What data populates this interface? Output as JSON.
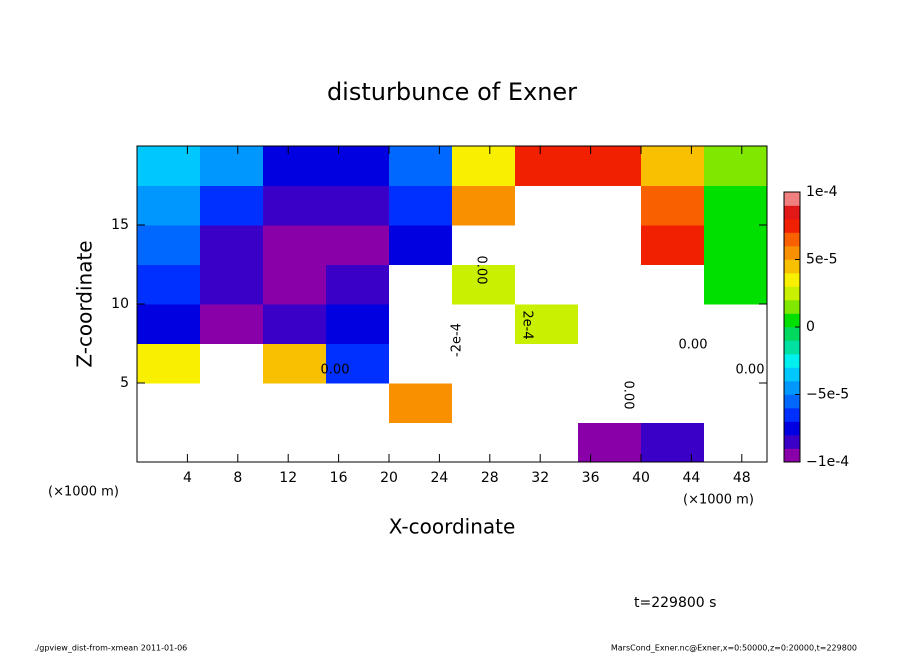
{
  "chart_data": {
    "type": "heatmap",
    "title": "disturbunce of Exner",
    "xlabel": "X-coordinate",
    "ylabel": "Z-coordinate",
    "x_unit_label": "(×1000 m)",
    "time_label": "t=229800 s",
    "footer_left": "./gpview_dist-from-xmean  2011-01-06",
    "footer_right": "MarsCond_Exner.nc@Exner,x=0:50000,z=0:20000,t=229800",
    "annotations": [
      "0.00",
      "0.00",
      "0.00",
      "0.00",
      "-2e-4",
      "2e-4",
      "0.00"
    ],
    "xlim": [
      0,
      50
    ],
    "ylim": [
      0,
      20
    ],
    "xticks": [
      4,
      8,
      12,
      16,
      20,
      24,
      28,
      32,
      36,
      40,
      44,
      48
    ],
    "yticks": [
      5,
      10,
      15
    ],
    "x": [
      2.5,
      7.5,
      12.5,
      17.5,
      22.5,
      27.5,
      32.5,
      37.5,
      42.5,
      47.5
    ],
    "z": [
      1.25,
      3.75,
      6.25,
      8.75,
      11.25,
      13.75,
      16.25,
      18.75
    ],
    "values": [
      [
        -0.00015,
        0.00015,
        0.00012,
        0.00013,
        -0.00012,
        -0.00016,
        -0.00016,
        -9e-05,
        -8e-05,
        0.00011
      ],
      [
        0.00012,
        0.00014,
        0.00013,
        0.00014,
        6e-05,
        -0.00012,
        -0.00015,
        -0.00015,
        0.00012,
        0.00012
      ],
      [
        4e-05,
        0.00011,
        5e-05,
        -6e-05,
        0.00012,
        -0.00013,
        0.00012,
        -0.00014,
        0.00012,
        0.00011
      ],
      [
        -7e-05,
        -9e-05,
        -8e-05,
        -7e-05,
        0.00013,
        0.00011,
        3e-05,
        0.00012,
        0.00011,
        0.00011
      ],
      [
        -6e-05,
        -8e-05,
        -9e-05,
        -8e-05,
        0.00012,
        3e-05,
        0.00012,
        0.00012,
        0.00011,
        1e-05
      ],
      [
        -5e-05,
        -8e-05,
        -9e-05,
        -9e-05,
        -7e-05,
        0.00011,
        0.00012,
        0.00011,
        8e-05,
        1e-05
      ],
      [
        -4e-05,
        -6e-05,
        -8e-05,
        -8e-05,
        -6e-05,
        6e-05,
        0.00011,
        0.00011,
        7e-05,
        1e-05
      ],
      [
        -3e-05,
        -4e-05,
        -7e-05,
        -7e-05,
        -5e-05,
        4e-05,
        8e-05,
        8e-05,
        5e-05,
        2e-05
      ]
    ],
    "levels": [
      -0.0001,
      -9e-05,
      -8e-05,
      -7e-05,
      -6e-05,
      -5e-05,
      -4e-05,
      -3e-05,
      -2e-05,
      -1e-05,
      0,
      1e-05,
      2e-05,
      3e-05,
      4e-05,
      5e-05,
      6e-05,
      7e-05,
      8e-05,
      9e-05,
      0.0001
    ],
    "colors": [
      "#8a00a8",
      "#3a00c8",
      "#0000e0",
      "#0030ff",
      "#0068ff",
      "#0098ff",
      "#00c8ff",
      "#00f0f0",
      "#00e0a0",
      "#00d860",
      "#00e000",
      "#80e800",
      "#c8f000",
      "#f8f000",
      "#f8c000",
      "#f89000",
      "#f86000",
      "#f02000",
      "#e01818",
      "#f08080"
    ],
    "cticks": [
      {
        "value": -0.0001,
        "label": "−1e-4"
      },
      {
        "value": -5e-05,
        "label": "−5e-5"
      },
      0,
      {
        "value": 5e-05,
        "label": "5e-5"
      },
      {
        "value": 0.0001,
        "label": "1e-4"
      }
    ]
  }
}
